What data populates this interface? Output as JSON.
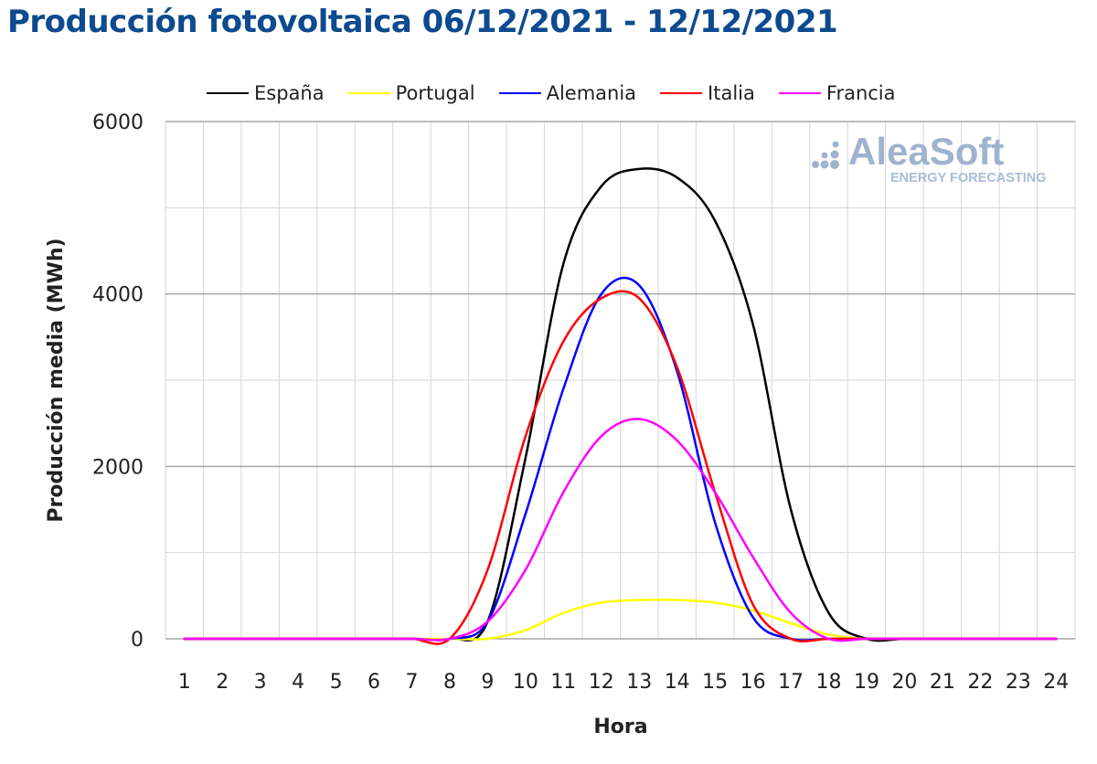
{
  "chart_data": {
    "type": "line",
    "title": "Producción fotovoltaica 06/12/2021 - 12/12/2021",
    "xlabel": "Hora",
    "ylabel": "Producción media (MWh)",
    "ylim": [
      0,
      6000
    ],
    "yticks": [
      0,
      2000,
      4000,
      6000
    ],
    "x": [
      1,
      2,
      3,
      4,
      5,
      6,
      7,
      8,
      9,
      10,
      11,
      12,
      13,
      14,
      15,
      16,
      17,
      18,
      19,
      20,
      21,
      22,
      23,
      24
    ],
    "grid": true,
    "legend_position": "top",
    "series": [
      {
        "name": "España",
        "color": "#000000",
        "values": [
          0,
          0,
          0,
          0,
          0,
          0,
          0,
          0,
          200,
          2100,
          4350,
          5250,
          5450,
          5350,
          4850,
          3650,
          1500,
          300,
          0,
          0,
          0,
          0,
          0,
          0
        ]
      },
      {
        "name": "Portugal",
        "color": "#ffff00",
        "values": [
          0,
          0,
          0,
          0,
          0,
          0,
          0,
          0,
          0,
          100,
          300,
          420,
          450,
          450,
          420,
          330,
          180,
          50,
          0,
          0,
          0,
          0,
          0,
          0
        ]
      },
      {
        "name": "Alemania",
        "color": "#0000ff",
        "values": [
          0,
          0,
          0,
          0,
          0,
          0,
          0,
          0,
          200,
          1450,
          2900,
          4000,
          4100,
          3100,
          1350,
          250,
          0,
          0,
          0,
          0,
          0,
          0,
          0,
          0
        ]
      },
      {
        "name": "Italia",
        "color": "#ff0000",
        "values": [
          0,
          0,
          0,
          0,
          0,
          0,
          0,
          0,
          800,
          2350,
          3450,
          3950,
          3950,
          3150,
          1700,
          400,
          0,
          0,
          0,
          0,
          0,
          0,
          0,
          0
        ]
      },
      {
        "name": "Francia",
        "color": "#ff00ff",
        "values": [
          0,
          0,
          0,
          0,
          0,
          0,
          0,
          0,
          200,
          800,
          1700,
          2350,
          2550,
          2300,
          1700,
          950,
          300,
          0,
          0,
          0,
          0,
          0,
          0,
          0
        ]
      }
    ]
  },
  "watermark": {
    "brand": "AleaSoft",
    "tagline": "ENERGY FORECASTING",
    "color": "#9fb3cf"
  }
}
